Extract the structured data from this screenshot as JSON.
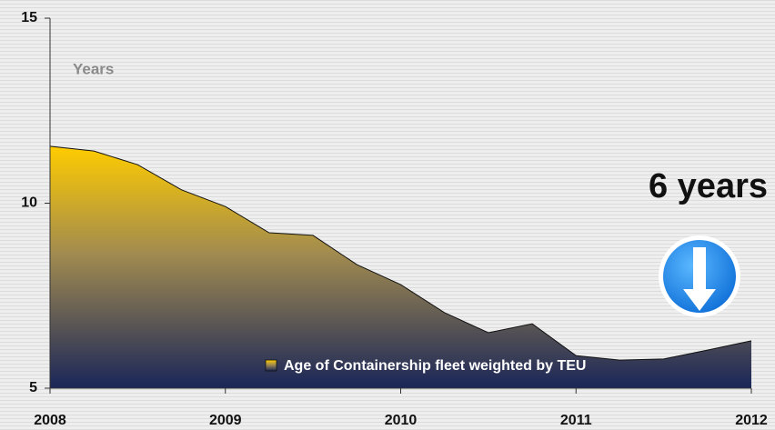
{
  "chart_data": {
    "type": "area",
    "annotations": [
      "Years",
      "6 years"
    ],
    "x": [
      2008,
      2008.25,
      2008.5,
      2008.75,
      2009,
      2009.25,
      2009.5,
      2009.75,
      2010,
      2010.25,
      2010.5,
      2010.75,
      2011,
      2011.25,
      2011.5,
      2011.75,
      2012
    ],
    "series": [
      {
        "name": "Age of Containership fleet weighted by TEU",
        "color": "#f5c518",
        "values": [
          11.54,
          11.41,
          11.04,
          10.36,
          9.91,
          9.2,
          9.13,
          8.34,
          7.8,
          7.04,
          6.5,
          6.74,
          5.88,
          5.76,
          5.79,
          6.03,
          6.28
        ]
      }
    ],
    "xlim": [
      2008,
      2012
    ],
    "xticks": [
      2008,
      2009,
      2010,
      2011,
      2012
    ],
    "ylim": [
      5,
      15
    ],
    "yticks": [
      5,
      10,
      15
    ],
    "grid": false,
    "legend": "bottom"
  }
}
